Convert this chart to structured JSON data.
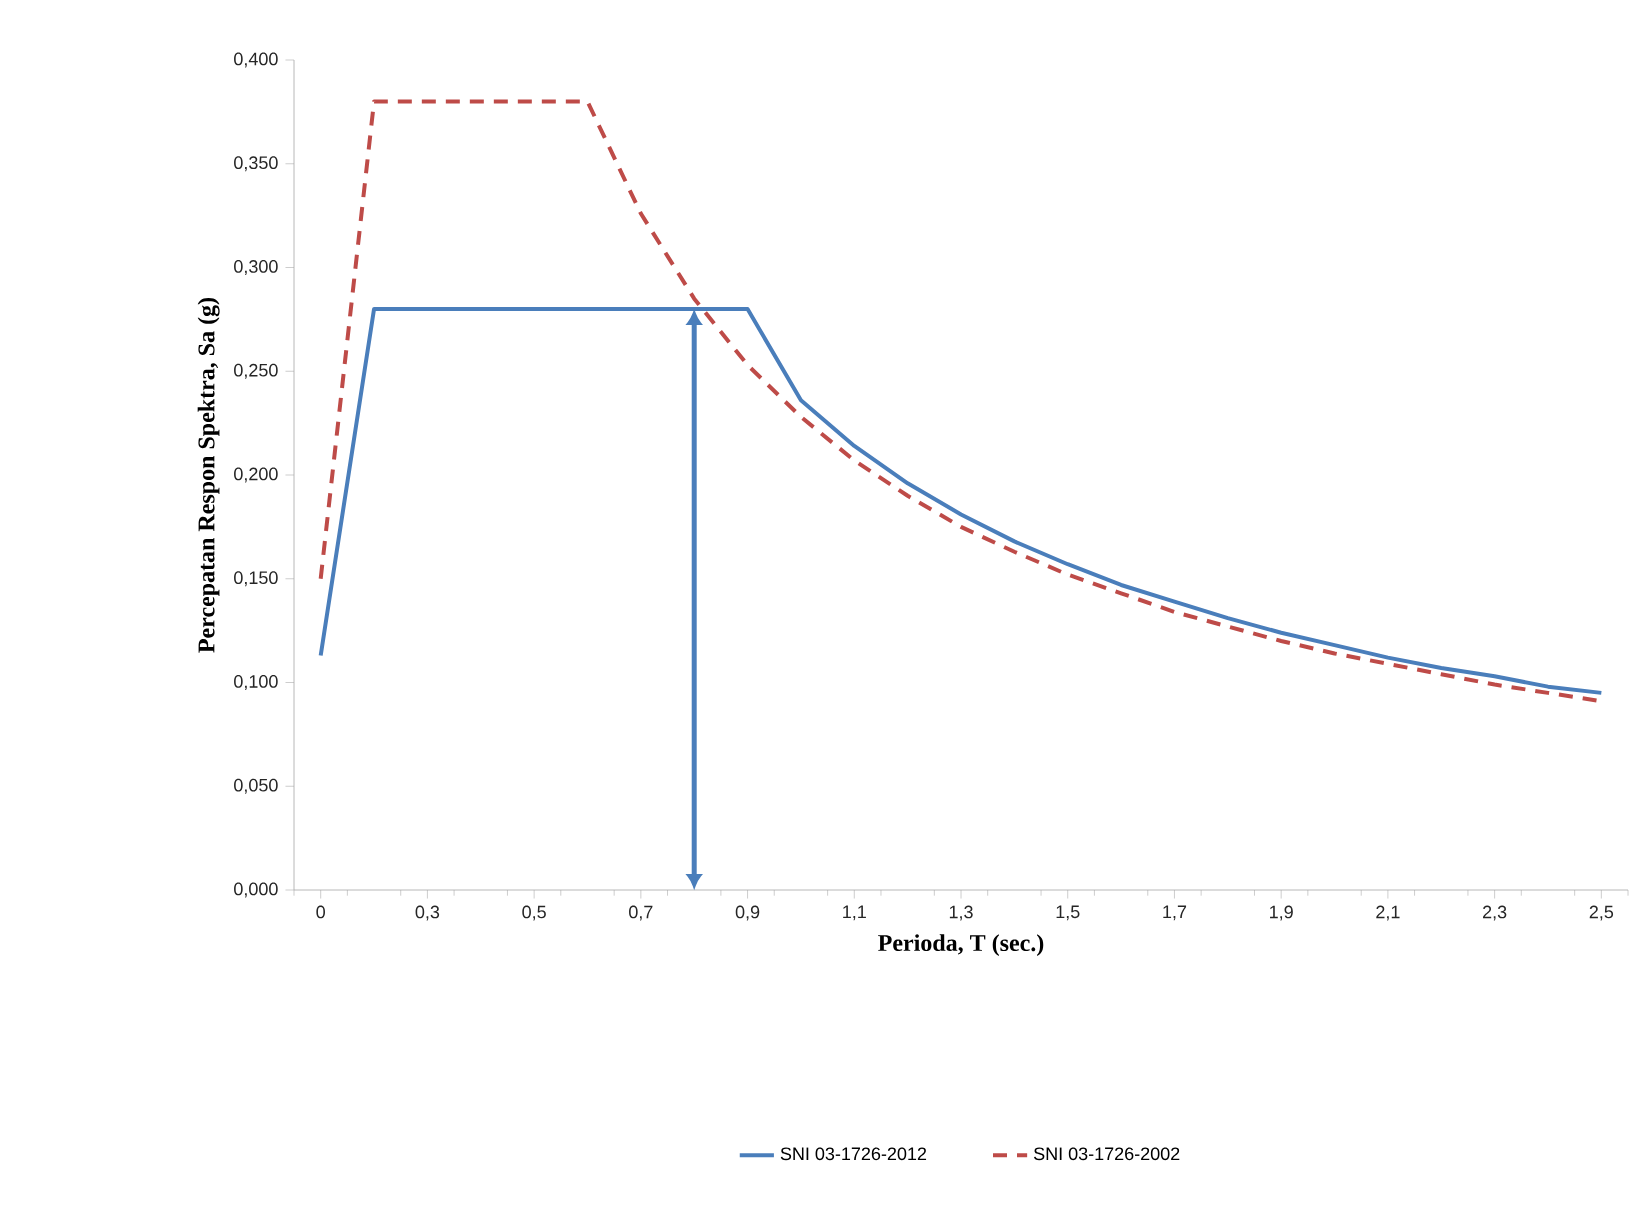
{
  "chart_data": {
    "type": "line",
    "xlabel": "Perioda, T (sec.)",
    "ylabel": "Percepatan Respon Spektra, Sa (g)",
    "categories": [
      "0",
      null,
      "0,3",
      null,
      "0,5",
      null,
      "0,7",
      null,
      "0,9",
      null,
      "1,1",
      null,
      "1,3",
      null,
      "1,5",
      null,
      "1,7",
      null,
      "1,9",
      null,
      "2,1",
      null,
      "2,3",
      null,
      "2,5"
    ],
    "series": [
      {
        "name": "SNI 03-1726-2012",
        "color": "#4a7ebb",
        "line_style": "solid",
        "values": [
          0.113,
          0.28,
          0.28,
          0.28,
          0.28,
          0.28,
          0.28,
          0.28,
          0.28,
          0.236,
          0.214,
          0.196,
          0.181,
          0.168,
          0.157,
          0.147,
          0.139,
          0.131,
          0.124,
          0.118,
          0.112,
          0.107,
          0.103,
          0.098,
          0.095
        ]
      },
      {
        "name": "SNI 03-1726-2002",
        "color": "#be4b48",
        "line_style": "dashed",
        "values": [
          0.15,
          0.38,
          0.38,
          0.38,
          0.38,
          0.38,
          0.326,
          0.285,
          0.253,
          0.228,
          0.207,
          0.19,
          0.175,
          0.163,
          0.152,
          0.143,
          0.134,
          0.127,
          0.12,
          0.114,
          0.109,
          0.104,
          0.099,
          0.095,
          0.091
        ]
      }
    ],
    "ylim": [
      0,
      0.4
    ],
    "yticks": [
      {
        "value": 0,
        "label": "0,000"
      },
      {
        "value": 0.05,
        "label": "0,050"
      },
      {
        "value": 0.1,
        "label": "0,100"
      },
      {
        "value": 0.15,
        "label": "0,150"
      },
      {
        "value": 0.2,
        "label": "0,200"
      },
      {
        "value": 0.25,
        "label": "0,250"
      },
      {
        "value": 0.3,
        "label": "0,300"
      },
      {
        "value": 0.35,
        "label": "0,350"
      },
      {
        "value": 0.4,
        "label": "0,400"
      }
    ],
    "grid": false,
    "legend": "bottom",
    "marker": "none"
  }
}
